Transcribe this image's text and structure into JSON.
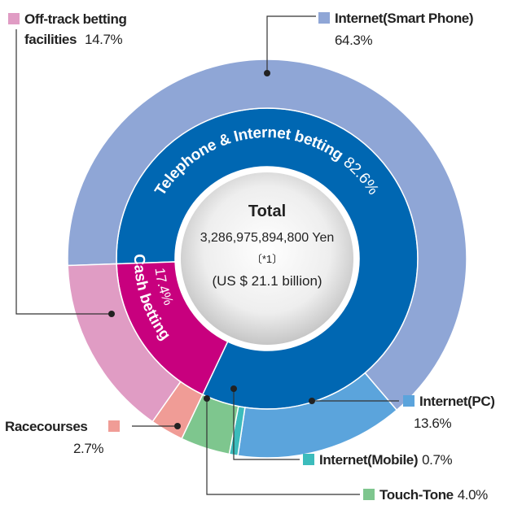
{
  "chart_data": {
    "type": "nested-donut",
    "center": {
      "title": "Total",
      "lines": [
        "3,286,975,894,800 Yen",
        "〔*1〕",
        "(US $ 21.1 billion)"
      ]
    },
    "rings": [
      {
        "categories": [
          "Telephone & Internet betting",
          "Cash betting"
        ],
        "values": [
          82.6,
          17.4
        ],
        "value_labels": [
          "82.6%",
          "17.4%"
        ],
        "colors": [
          "#0067b2",
          "#c8007e"
        ]
      },
      {
        "categories": [
          "Internet(Smart Phone)",
          "Internet(PC)",
          "Internet(Mobile)",
          "Touch-Tone",
          "Racecourses",
          "Off-track betting facilities"
        ],
        "values": [
          64.3,
          13.6,
          0.7,
          4.0,
          2.7,
          14.7
        ],
        "value_labels": [
          "64.3%",
          "13.6%",
          "0.7%",
          "4.0%",
          "2.7%",
          "14.7%"
        ],
        "colors": [
          "#8fa6d6",
          "#5ba4dc",
          "#3cbcbc",
          "#7ec68e",
          "#f09c96",
          "#e09cc4"
        ]
      }
    ]
  }
}
